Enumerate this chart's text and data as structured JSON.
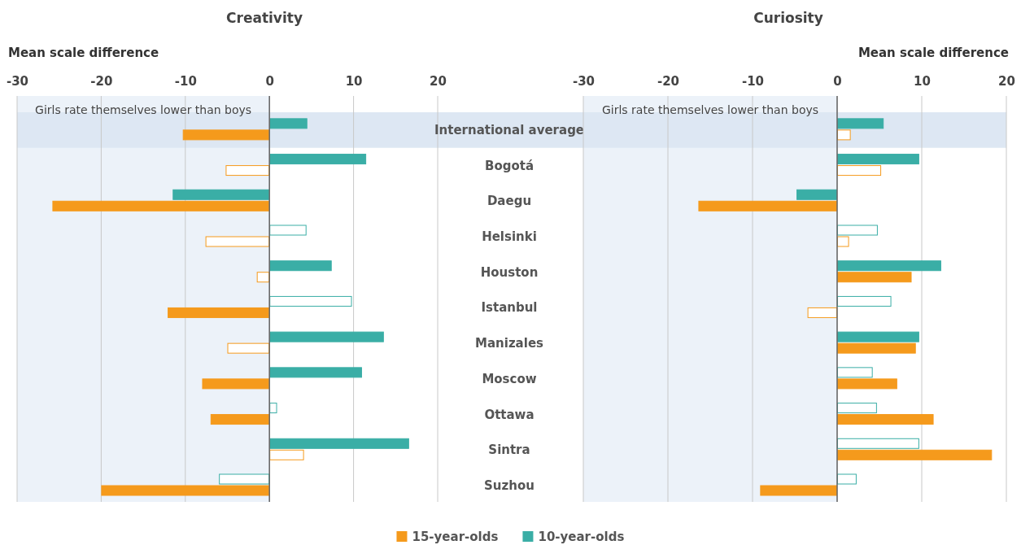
{
  "chart_data": [
    {
      "type": "bar",
      "orientation": "horizontal",
      "title": "Creativity",
      "xlabel": "Mean scale difference",
      "categories": [
        "International average",
        "Bogotá",
        "Daegu",
        "Helsinki",
        "Houston",
        "Istanbul",
        "Manizales",
        "Moscow",
        "Ottawa",
        "Sintra",
        "Suzhou"
      ],
      "series": [
        {
          "name": "10-year-olds",
          "color": "#3aaea6",
          "values": [
            4.5,
            11.5,
            -11.5,
            4.4,
            7.4,
            9.8,
            13.6,
            11.0,
            0.9,
            16.6,
            -6.0
          ],
          "colors": [
            "#3aaea6",
            "#3aaea6",
            "#3aaea6",
            "#ffffff",
            "#3aaea6",
            "#ffffff",
            "#3aaea6",
            "#3aaea6",
            "#ffffff",
            "#3aaea6",
            "#ffffff"
          ]
        },
        {
          "name": "15-year-olds",
          "color": "#f59a1c",
          "values": [
            -10.3,
            -5.2,
            -25.8,
            -7.6,
            -1.5,
            -12.1,
            -5.0,
            -8.0,
            -7.0,
            4.1,
            -20.0
          ],
          "colors": [
            "#f59a1c",
            "#ffffff",
            "#f59a1c",
            "#ffffff",
            "#ffffff",
            "#f59a1c",
            "#ffffff",
            "#f59a1c",
            "#f59a1c",
            "#ffffff",
            "#f59a1c"
          ]
        }
      ],
      "xlim": [
        -30,
        20
      ],
      "xticks": [
        -30,
        -20,
        -10,
        0,
        10,
        20
      ],
      "grid": "x",
      "legend": "bottom",
      "bands": [
        {
          "axis": "x",
          "from": -30,
          "to": 0,
          "label": "Girls rate themselves lower than boys",
          "color": "#ecf2f9"
        },
        {
          "axis": "y",
          "from": "International average",
          "to": "International average",
          "color": "#dde7f3"
        }
      ]
    },
    {
      "type": "bar",
      "orientation": "horizontal",
      "title": "Curiosity",
      "xlabel": "Mean scale difference",
      "tick_labels": "x",
      "categories": [
        "International average",
        "Bogotá",
        "Daegu",
        "Helsinki",
        "Houston",
        "Istanbul",
        "Manizales",
        "Moscow",
        "Ottawa",
        "Sintra",
        "Suzhou"
      ],
      "series": [
        {
          "name": "10-year-olds",
          "color": "#3aaea6",
          "values": [
            5.5,
            9.7,
            -4.8,
            4.8,
            12.3,
            6.4,
            9.7,
            4.2,
            4.7,
            9.7,
            2.3
          ],
          "colors": [
            "#3aaea6",
            "#3aaea6",
            "#3aaea6",
            "#ffffff",
            "#3aaea6",
            "#ffffff",
            "#3aaea6",
            "#ffffff",
            "#ffffff",
            "#ffffff",
            "#ffffff"
          ]
        },
        {
          "name": "15-year-olds",
          "color": "#f59a1c",
          "values": [
            1.6,
            5.2,
            -16.4,
            1.4,
            8.8,
            -3.5,
            9.3,
            7.1,
            11.4,
            18.3,
            -9.1
          ],
          "colors": [
            "#ffffff",
            "#ffffff",
            "#f59a1c",
            "#ffffff",
            "#f59a1c",
            "#ffffff",
            "#f59a1c",
            "#f59a1c",
            "#f59a1c",
            "#f59a1c",
            "#f59a1c"
          ]
        }
      ],
      "xlim": [
        -30,
        20
      ],
      "xticks": [
        -30,
        -20,
        -10,
        0,
        10,
        20
      ],
      "grid": "x",
      "bands": [
        {
          "axis": "x",
          "from": -30,
          "to": 0,
          "label": "Girls rate themselves lower than boys",
          "color": "#ecf2f9"
        },
        {
          "axis": "y",
          "from": "International average",
          "to": "International average",
          "color": "#dde7f3"
        }
      ]
    }
  ]
}
